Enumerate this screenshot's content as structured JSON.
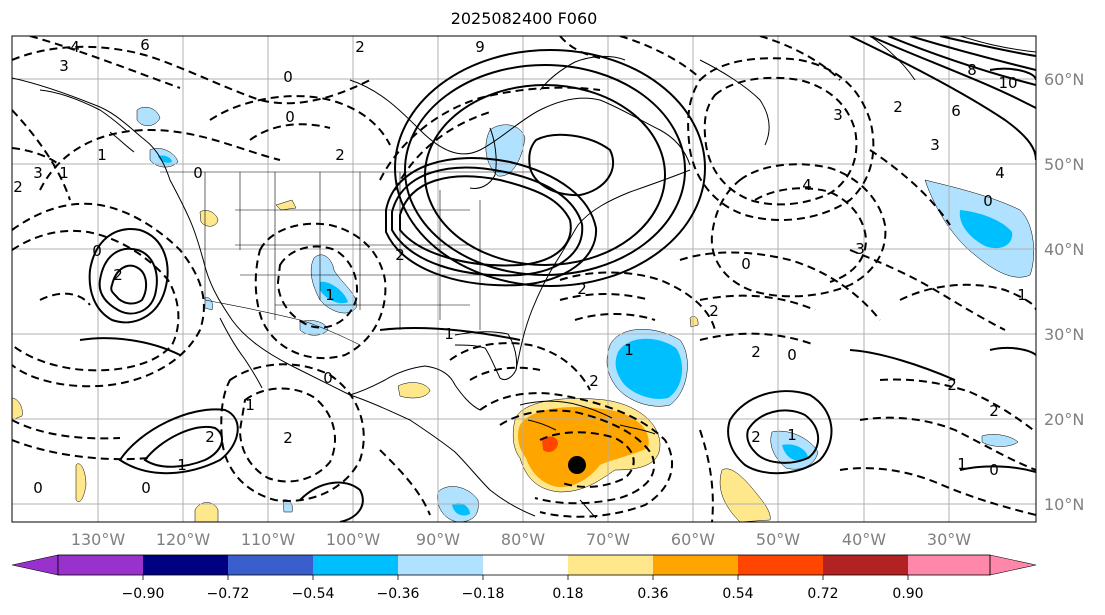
{
  "title": "2025082400 F060",
  "lon_ticks": [
    "130°W",
    "120°W",
    "110°W",
    "100°W",
    "90°W",
    "80°W",
    "70°W",
    "60°W",
    "50°W",
    "40°W",
    "30°W"
  ],
  "lat_ticks": [
    "60°N",
    "50°N",
    "40°N",
    "30°N",
    "20°N",
    "10°N"
  ],
  "colorbar": {
    "labels": [
      "−0.90",
      "−0.72",
      "−0.54",
      "−0.36",
      "−0.18",
      "0.18",
      "0.36",
      "0.54",
      "0.72",
      "0.90"
    ],
    "colors": [
      "#9932cc",
      "#000080",
      "#3a5fcd",
      "#00bfff",
      "#b0e2ff",
      "#ffffff",
      "#ffe88c",
      "#ffa500",
      "#ff4500",
      "#b22222",
      "#ff88aa"
    ]
  },
  "contour_labels": [
    "4",
    "6",
    "3",
    "2",
    "2",
    "0",
    "1",
    "0",
    "2",
    "0",
    "2",
    "3",
    "1",
    "0",
    "2",
    "1",
    "2",
    "0",
    "1",
    "2",
    "0",
    "2",
    "1",
    "3",
    "2",
    "0",
    "2",
    "4",
    "3",
    "1",
    "3",
    "2",
    "8",
    "10",
    "9",
    "6",
    "4",
    "0",
    "2",
    "2",
    "0",
    "1",
    "1",
    "2",
    "0",
    "0",
    "2",
    "1",
    "1"
  ],
  "storm_marker": "tropical-cyclone-center"
}
